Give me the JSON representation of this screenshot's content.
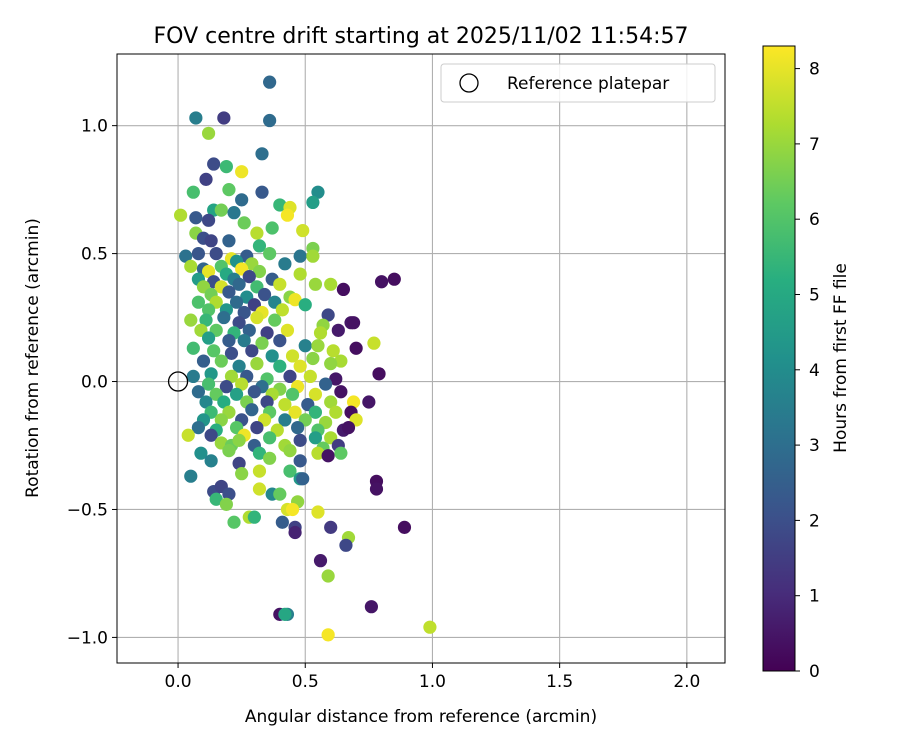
{
  "chart_data": {
    "type": "scatter",
    "title": "FOV centre drift starting at 2025/11/02 11:54:57",
    "xlabel": "Angular distance from reference (arcmin)",
    "ylabel": "Rotation from reference (arcmin)",
    "xlim": [
      -0.24,
      2.15
    ],
    "ylim": [
      -1.1,
      1.28
    ],
    "xticks": [
      0.0,
      0.5,
      1.0,
      1.5,
      2.0
    ],
    "xtick_labels": [
      "0.0",
      "0.5",
      "1.0",
      "1.5",
      "2.0"
    ],
    "yticks": [
      -1.0,
      -0.5,
      0.0,
      0.5,
      1.0
    ],
    "ytick_labels": [
      "−1.0",
      "−0.5",
      "0.0",
      "0.5",
      "1.0"
    ],
    "grid": true,
    "legend": {
      "position": "upper-right",
      "entries": [
        "Reference platepar"
      ]
    },
    "reference_point": {
      "x": 0.0,
      "y": 0.0,
      "label": "Reference platepar"
    },
    "colorbar": {
      "label": "Hours from first FF file",
      "range": [
        0,
        8.3
      ],
      "ticks": [
        0,
        1,
        2,
        3,
        4,
        5,
        6,
        7,
        8
      ],
      "colormap": "viridis"
    },
    "points": [
      [
        0.36,
        1.17,
        2.8
      ],
      [
        0.07,
        1.03,
        3.5
      ],
      [
        0.18,
        1.03,
        1.5
      ],
      [
        0.36,
        1.02,
        2.9
      ],
      [
        0.12,
        0.97,
        7.0
      ],
      [
        0.33,
        0.89,
        3.0
      ],
      [
        0.14,
        0.85,
        1.9
      ],
      [
        0.19,
        0.84,
        5.6
      ],
      [
        0.25,
        0.82,
        8.1
      ],
      [
        0.11,
        0.79,
        1.6
      ],
      [
        0.06,
        0.74,
        5.8
      ],
      [
        0.2,
        0.75,
        6.2
      ],
      [
        0.33,
        0.74,
        2.3
      ],
      [
        0.55,
        0.74,
        4.0
      ],
      [
        0.25,
        0.71,
        2.9
      ],
      [
        0.4,
        0.69,
        5.5
      ],
      [
        0.44,
        0.68,
        7.9
      ],
      [
        0.53,
        0.7,
        4.6
      ],
      [
        0.14,
        0.67,
        4.8
      ],
      [
        0.17,
        0.67,
        6.5
      ],
      [
        0.22,
        0.66,
        3.3
      ],
      [
        0.43,
        0.65,
        8.2
      ],
      [
        0.01,
        0.65,
        7.3
      ],
      [
        0.07,
        0.64,
        2.3
      ],
      [
        0.12,
        0.63,
        1.8
      ],
      [
        0.26,
        0.62,
        6.4
      ],
      [
        0.37,
        0.6,
        5.9
      ],
      [
        0.31,
        0.58,
        7.4
      ],
      [
        0.49,
        0.59,
        7.7
      ],
      [
        0.07,
        0.58,
        6.8
      ],
      [
        0.1,
        0.56,
        2.0
      ],
      [
        0.13,
        0.55,
        1.7
      ],
      [
        0.2,
        0.55,
        2.6
      ],
      [
        0.32,
        0.53,
        5.4
      ],
      [
        0.53,
        0.52,
        6.6
      ],
      [
        0.03,
        0.49,
        3.1
      ],
      [
        0.08,
        0.5,
        2.2
      ],
      [
        0.15,
        0.5,
        1.9
      ],
      [
        0.21,
        0.48,
        8.0
      ],
      [
        0.27,
        0.49,
        2.4
      ],
      [
        0.36,
        0.5,
        6.2
      ],
      [
        0.48,
        0.49,
        3.2
      ],
      [
        0.53,
        0.49,
        7.1
      ],
      [
        0.05,
        0.45,
        7.2
      ],
      [
        0.1,
        0.44,
        2.7
      ],
      [
        0.17,
        0.45,
        6.0
      ],
      [
        0.23,
        0.47,
        4.2
      ],
      [
        0.29,
        0.46,
        7.0
      ],
      [
        0.42,
        0.46,
        3.4
      ],
      [
        0.12,
        0.43,
        8.0
      ],
      [
        0.19,
        0.42,
        5.0
      ],
      [
        0.25,
        0.44,
        8.2
      ],
      [
        0.32,
        0.43,
        6.7
      ],
      [
        0.48,
        0.42,
        7.3
      ],
      [
        0.08,
        0.4,
        4.5
      ],
      [
        0.14,
        0.39,
        2.0
      ],
      [
        0.22,
        0.4,
        3.5
      ],
      [
        0.28,
        0.41,
        1.8
      ],
      [
        0.37,
        0.4,
        2.4
      ],
      [
        0.1,
        0.37,
        6.9
      ],
      [
        0.17,
        0.37,
        7.8
      ],
      [
        0.24,
        0.38,
        2.8
      ],
      [
        0.31,
        0.37,
        5.7
      ],
      [
        0.4,
        0.38,
        7.6
      ],
      [
        0.54,
        0.38,
        7.0
      ],
      [
        0.6,
        0.38,
        7.2
      ],
      [
        0.65,
        0.36,
        0.3
      ],
      [
        0.8,
        0.39,
        0.4
      ],
      [
        0.85,
        0.4,
        0.3
      ],
      [
        0.13,
        0.34,
        6.5
      ],
      [
        0.2,
        0.35,
        2.3
      ],
      [
        0.27,
        0.33,
        4.0
      ],
      [
        0.34,
        0.34,
        2.1
      ],
      [
        0.44,
        0.33,
        6.8
      ],
      [
        0.08,
        0.31,
        5.9
      ],
      [
        0.15,
        0.31,
        7.3
      ],
      [
        0.23,
        0.31,
        2.9
      ],
      [
        0.3,
        0.3,
        1.6
      ],
      [
        0.38,
        0.31,
        3.7
      ],
      [
        0.46,
        0.32,
        8.1
      ],
      [
        0.5,
        0.3,
        5.2
      ],
      [
        0.12,
        0.28,
        6.0
      ],
      [
        0.19,
        0.28,
        4.3
      ],
      [
        0.26,
        0.27,
        2.2
      ],
      [
        0.33,
        0.27,
        8.0
      ],
      [
        0.41,
        0.28,
        7.5
      ],
      [
        0.59,
        0.26,
        1.8
      ],
      [
        0.05,
        0.24,
        7.0
      ],
      [
        0.11,
        0.24,
        5.5
      ],
      [
        0.18,
        0.25,
        3.0
      ],
      [
        0.24,
        0.23,
        1.9
      ],
      [
        0.31,
        0.25,
        7.8
      ],
      [
        0.38,
        0.24,
        6.3
      ],
      [
        0.57,
        0.22,
        6.9
      ],
      [
        0.68,
        0.23,
        0.5
      ],
      [
        0.69,
        0.23,
        0.4
      ],
      [
        0.09,
        0.2,
        7.1
      ],
      [
        0.15,
        0.2,
        6.2
      ],
      [
        0.22,
        0.19,
        5.4
      ],
      [
        0.28,
        0.2,
        2.6
      ],
      [
        0.35,
        0.19,
        1.6
      ],
      [
        0.43,
        0.2,
        7.9
      ],
      [
        0.56,
        0.19,
        7.3
      ],
      [
        0.63,
        0.2,
        0.6
      ],
      [
        0.12,
        0.17,
        4.6
      ],
      [
        0.2,
        0.16,
        2.4
      ],
      [
        0.26,
        0.16,
        3.4
      ],
      [
        0.33,
        0.15,
        6.6
      ],
      [
        0.4,
        0.16,
        2.1
      ],
      [
        0.5,
        0.14,
        3.6
      ],
      [
        0.55,
        0.14,
        7.0
      ],
      [
        0.61,
        0.12,
        7.4
      ],
      [
        0.7,
        0.13,
        0.3
      ],
      [
        0.77,
        0.15,
        7.6
      ],
      [
        0.06,
        0.13,
        5.7
      ],
      [
        0.14,
        0.12,
        6.1
      ],
      [
        0.21,
        0.11,
        2.0
      ],
      [
        0.29,
        0.12,
        1.8
      ],
      [
        0.37,
        0.1,
        4.1
      ],
      [
        0.45,
        0.1,
        7.7
      ],
      [
        0.53,
        0.09,
        6.8
      ],
      [
        0.64,
        0.08,
        7.2
      ],
      [
        0.1,
        0.08,
        2.5
      ],
      [
        0.17,
        0.08,
        6.4
      ],
      [
        0.24,
        0.06,
        3.6
      ],
      [
        0.31,
        0.07,
        7.0
      ],
      [
        0.4,
        0.06,
        5.3
      ],
      [
        0.48,
        0.06,
        7.9
      ],
      [
        0.6,
        0.07,
        6.9
      ],
      [
        0.06,
        0.02,
        3.4
      ],
      [
        0.13,
        0.03,
        4.4
      ],
      [
        0.21,
        0.02,
        7.1
      ],
      [
        0.27,
        0.02,
        2.3
      ],
      [
        0.35,
        0.01,
        6.0
      ],
      [
        0.44,
        0.02,
        1.7
      ],
      [
        0.52,
        0.02,
        7.6
      ],
      [
        0.62,
        0.01,
        0.5
      ],
      [
        0.79,
        0.03,
        0.3
      ],
      [
        0.12,
        -0.01,
        5.8
      ],
      [
        0.19,
        -0.02,
        1.9
      ],
      [
        0.25,
        -0.01,
        7.4
      ],
      [
        0.33,
        -0.02,
        3.0
      ],
      [
        0.4,
        -0.03,
        6.7
      ],
      [
        0.47,
        -0.02,
        8.1
      ],
      [
        0.58,
        -0.01,
        2.6
      ],
      [
        0.08,
        -0.04,
        2.9
      ],
      [
        0.15,
        -0.05,
        6.3
      ],
      [
        0.23,
        -0.05,
        4.7
      ],
      [
        0.3,
        -0.04,
        2.2
      ],
      [
        0.37,
        -0.05,
        7.2
      ],
      [
        0.45,
        -0.05,
        6.0
      ],
      [
        0.54,
        -0.05,
        7.8
      ],
      [
        0.64,
        -0.04,
        0.4
      ],
      [
        0.11,
        -0.08,
        3.8
      ],
      [
        0.18,
        -0.08,
        5.1
      ],
      [
        0.27,
        -0.08,
        6.6
      ],
      [
        0.35,
        -0.08,
        1.8
      ],
      [
        0.42,
        -0.09,
        7.5
      ],
      [
        0.51,
        -0.09,
        2.4
      ],
      [
        0.6,
        -0.08,
        7.1
      ],
      [
        0.69,
        -0.08,
        8.2
      ],
      [
        0.75,
        -0.08,
        0.5
      ],
      [
        0.13,
        -0.12,
        5.6
      ],
      [
        0.2,
        -0.12,
        7.0
      ],
      [
        0.29,
        -0.11,
        2.7
      ],
      [
        0.36,
        -0.12,
        6.2
      ],
      [
        0.46,
        -0.12,
        8.0
      ],
      [
        0.54,
        -0.12,
        5.4
      ],
      [
        0.62,
        -0.12,
        7.3
      ],
      [
        0.68,
        -0.12,
        0.3
      ],
      [
        0.1,
        -0.15,
        4.3
      ],
      [
        0.17,
        -0.15,
        6.8
      ],
      [
        0.25,
        -0.15,
        2.1
      ],
      [
        0.34,
        -0.15,
        7.7
      ],
      [
        0.42,
        -0.15,
        3.5
      ],
      [
        0.5,
        -0.15,
        6.5
      ],
      [
        0.58,
        -0.16,
        7.0
      ],
      [
        0.7,
        -0.15,
        7.9
      ],
      [
        0.08,
        -0.18,
        3.0
      ],
      [
        0.15,
        -0.19,
        5.2
      ],
      [
        0.23,
        -0.18,
        6.1
      ],
      [
        0.31,
        -0.18,
        1.7
      ],
      [
        0.39,
        -0.19,
        7.4
      ],
      [
        0.47,
        -0.18,
        2.8
      ],
      [
        0.55,
        -0.19,
        6.0
      ],
      [
        0.65,
        -0.19,
        0.6
      ],
      [
        0.67,
        -0.18,
        0.4
      ],
      [
        0.13,
        -0.21,
        1.8
      ],
      [
        0.04,
        -0.21,
        7.6
      ],
      [
        0.26,
        -0.21,
        8.1
      ],
      [
        0.36,
        -0.22,
        5.8
      ],
      [
        0.48,
        -0.23,
        1.9
      ],
      [
        0.54,
        -0.22,
        4.6
      ],
      [
        0.6,
        -0.22,
        7.2
      ],
      [
        0.17,
        -0.24,
        7.0
      ],
      [
        0.21,
        -0.25,
        6.4
      ],
      [
        0.24,
        -0.23,
        6.8
      ],
      [
        0.3,
        -0.25,
        2.5
      ],
      [
        0.42,
        -0.25,
        7.1
      ],
      [
        0.57,
        -0.26,
        6.3
      ],
      [
        0.63,
        -0.25,
        1.5
      ],
      [
        0.09,
        -0.28,
        4.1
      ],
      [
        0.2,
        -0.27,
        6.6
      ],
      [
        0.32,
        -0.28,
        5.4
      ],
      [
        0.44,
        -0.27,
        6.9
      ],
      [
        0.55,
        -0.28,
        7.4
      ],
      [
        0.59,
        -0.29,
        0.4
      ],
      [
        0.64,
        -0.28,
        6.2
      ],
      [
        0.13,
        -0.31,
        3.6
      ],
      [
        0.24,
        -0.32,
        1.7
      ],
      [
        0.36,
        -0.3,
        6.7
      ],
      [
        0.48,
        -0.31,
        2.3
      ],
      [
        0.05,
        -0.37,
        3.5
      ],
      [
        0.25,
        -0.36,
        6.8
      ],
      [
        0.32,
        -0.35,
        7.6
      ],
      [
        0.44,
        -0.35,
        5.8
      ],
      [
        0.48,
        -0.38,
        4.4
      ],
      [
        0.49,
        -0.38,
        2.6
      ],
      [
        0.78,
        -0.39,
        0.3
      ],
      [
        0.78,
        -0.42,
        0.4
      ],
      [
        0.14,
        -0.43,
        1.9
      ],
      [
        0.17,
        -0.41,
        1.7
      ],
      [
        0.2,
        -0.44,
        2.0
      ],
      [
        0.32,
        -0.42,
        7.7
      ],
      [
        0.37,
        -0.44,
        3.8
      ],
      [
        0.4,
        -0.44,
        6.3
      ],
      [
        0.15,
        -0.46,
        5.5
      ],
      [
        0.19,
        -0.48,
        6.7
      ],
      [
        0.47,
        -0.47,
        6.9
      ],
      [
        0.43,
        -0.5,
        7.8
      ],
      [
        0.45,
        -0.5,
        8.2
      ],
      [
        0.55,
        -0.51,
        7.9
      ],
      [
        0.28,
        -0.53,
        7.3
      ],
      [
        0.3,
        -0.53,
        5.4
      ],
      [
        0.22,
        -0.55,
        6.1
      ],
      [
        0.41,
        -0.55,
        2.4
      ],
      [
        0.46,
        -0.57,
        1.6
      ],
      [
        0.6,
        -0.57,
        1.4
      ],
      [
        0.46,
        -0.59,
        0.8
      ],
      [
        0.67,
        -0.61,
        7.1
      ],
      [
        0.66,
        -0.64,
        1.8
      ],
      [
        0.89,
        -0.57,
        0.3
      ],
      [
        0.56,
        -0.7,
        0.6
      ],
      [
        0.59,
        -0.76,
        7.0
      ],
      [
        0.76,
        -0.88,
        0.5
      ],
      [
        0.4,
        -0.91,
        0.4
      ],
      [
        0.43,
        -0.91,
        3.5
      ],
      [
        0.42,
        -0.91,
        4.9
      ],
      [
        0.59,
        -0.99,
        8.2
      ],
      [
        0.99,
        -0.96,
        7.5
      ]
    ]
  }
}
